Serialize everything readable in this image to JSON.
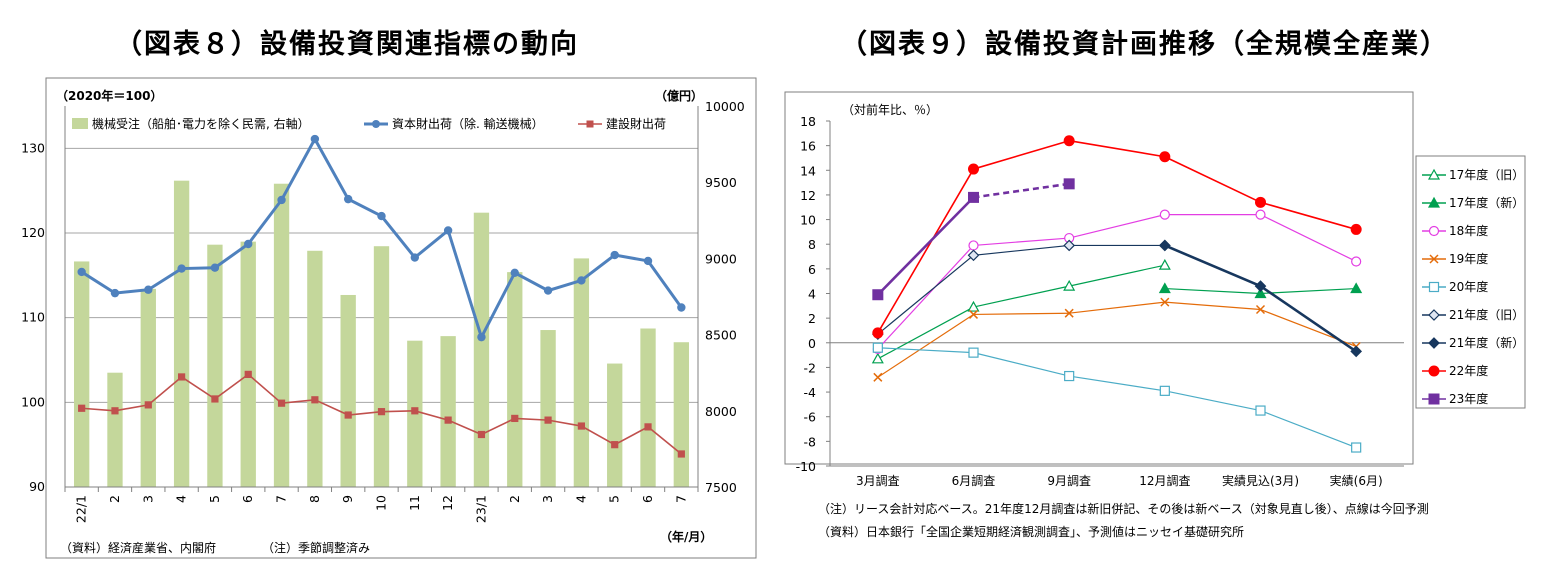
{
  "titles": {
    "left": "（図表８）設備投資関連指標の動向",
    "right": "（図表９）設備投資計画推移（全規模全産業）"
  },
  "chart_data": [
    {
      "type": "bar",
      "title": "（図表８）設備投資関連指標の動向",
      "left_axis_label": "（2020年＝100）",
      "right_axis_label": "（億円）",
      "x_unit_label": "（年/月）",
      "source_note": "（資料）経済産業省、内閣府",
      "adjust_note": "（注）季節調整済み",
      "categories": [
        "22/1",
        "2",
        "3",
        "4",
        "5",
        "6",
        "7",
        "8",
        "9",
        "10",
        "11",
        "12",
        "23/1",
        "2",
        "3",
        "4",
        "5",
        "6",
        "7"
      ],
      "ylim_left": [
        90,
        135
      ],
      "yticks_left": [
        90,
        100,
        110,
        120,
        130
      ],
      "ylim_right": [
        7500,
        10000
      ],
      "yticks_right": [
        7500,
        8000,
        8500,
        9000,
        9500,
        10000
      ],
      "series": [
        {
          "name": "機械受注（船舶･電力を除く民需, 右軸）",
          "kind": "bar",
          "axis": "right",
          "color": "#c4d79b",
          "values": [
            8980,
            8250,
            8800,
            9510,
            9090,
            9110,
            9490,
            9050,
            8760,
            9080,
            8460,
            8490,
            9300,
            8910,
            8530,
            9000,
            8310,
            8540,
            8450
          ]
        },
        {
          "name": "資本財出荷（除. 輸送機械）",
          "kind": "line",
          "axis": "left",
          "color": "#4f81bd",
          "values": [
            115.4,
            112.9,
            113.3,
            115.8,
            115.9,
            118.7,
            123.9,
            131.1,
            124.0,
            122.0,
            117.1,
            120.3,
            107.7,
            115.3,
            113.2,
            114.4,
            117.4,
            116.7,
            111.2
          ]
        },
        {
          "name": "建設財出荷",
          "kind": "line",
          "axis": "left",
          "color": "#c0504d",
          "values": [
            99.3,
            99.0,
            99.7,
            103.0,
            100.4,
            103.3,
            99.9,
            100.3,
            98.5,
            98.9,
            99.0,
            97.9,
            96.2,
            98.1,
            97.9,
            97.2,
            95.0,
            97.1,
            93.9
          ]
        }
      ]
    },
    {
      "type": "line",
      "title": "（図表９）設備投資計画推移（全規模全産業）",
      "y_axis_label": "（対前年比、％）",
      "notes": [
        "（注）リース会計対応ベース。21年度12月調査は新旧併記、その後は新ベース（対象見直し後）、点線は今回予測",
        "（資料）日本銀行「全国企業短期経済観測調査」、予測値はニッセイ基礎研究所"
      ],
      "categories": [
        "3月調査",
        "6月調査",
        "9月調査",
        "12月調査",
        "実績見込(3月)",
        "実績(6月)"
      ],
      "ylim": [
        -10,
        18
      ],
      "yticks": [
        -10,
        -8,
        -6,
        -4,
        -2,
        0,
        2,
        4,
        6,
        8,
        10,
        12,
        14,
        16,
        18
      ],
      "series": [
        {
          "name": "17年度（旧）",
          "color": "#00a050",
          "marker": "triangle-open",
          "values": [
            -1.3,
            2.9,
            4.6,
            6.3,
            null,
            null
          ]
        },
        {
          "name": "17年度（新）",
          "color": "#00a050",
          "marker": "triangle",
          "values": [
            null,
            null,
            null,
            4.4,
            4.0,
            4.4
          ]
        },
        {
          "name": "18年度",
          "color": "#e33ee3",
          "marker": "circle-open",
          "values": [
            -0.5,
            7.9,
            8.5,
            10.4,
            10.4,
            6.6
          ]
        },
        {
          "name": "19年度",
          "color": "#e46c0a",
          "marker": "x",
          "values": [
            -2.8,
            2.3,
            2.4,
            3.3,
            2.7,
            -0.3
          ]
        },
        {
          "name": "20年度",
          "color": "#4bacc6",
          "marker": "square-open",
          "values": [
            -0.4,
            -0.8,
            -2.7,
            -3.9,
            -5.5,
            -8.5
          ]
        },
        {
          "name": "21年度（旧）",
          "color": "#17375e",
          "marker": "diamond-open",
          "values": [
            0.7,
            7.1,
            7.9,
            7.9,
            null,
            null
          ]
        },
        {
          "name": "21年度（新）",
          "color": "#17375e",
          "marker": "diamond",
          "values": [
            null,
            null,
            null,
            7.9,
            4.6,
            -0.7
          ]
        },
        {
          "name": "22年度",
          "color": "#ff0000",
          "marker": "circle",
          "values": [
            0.8,
            14.1,
            16.4,
            15.1,
            11.4,
            9.2
          ]
        },
        {
          "name": "23年度",
          "color": "#7030a0",
          "marker": "square",
          "values": [
            3.9,
            11.8,
            12.9,
            null,
            null,
            null
          ],
          "dashed_from_index": 1
        }
      ]
    }
  ]
}
